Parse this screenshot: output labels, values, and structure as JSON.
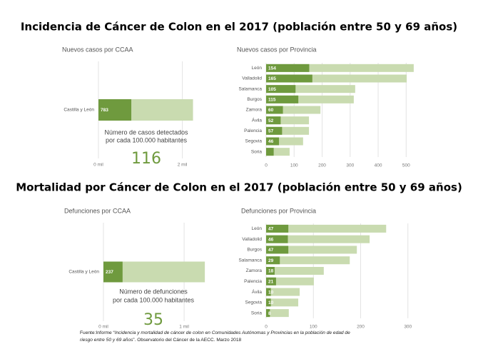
{
  "title_incidence": "Incidencia de Cáncer de Colon en el 2017 (población entre 50 y 69 años)",
  "title_mortality": "Mortalidad por Cáncer de Colon en el 2017 (población entre 50 y 69 años)",
  "footnote": [
    [
      {
        "text": "Fuente:Informe “",
        "italic": false
      },
      {
        "text": "Incidencia y mortalidad de cáncer de colon en Comunidades Autónomas y Provincias en la población de edad de",
        "italic": true
      }
    ],
    [
      {
        "text": "riesgo entre 50 y 69 años",
        "italic": true
      },
      {
        "text": "”. Observatorio del Cáncer de la AECC. Marzo 2018",
        "italic": false
      }
    ]
  ],
  "chart_data": [
    {
      "type": "bar",
      "orientation": "horizontal",
      "title": "Nuevos casos por CCAA",
      "categories": [
        "Castilla y León"
      ],
      "series": [
        {
          "color": "#6f9a3e",
          "values": [
            783
          ]
        },
        {
          "color": "#c9dbb0",
          "values": [
            2254
          ]
        }
      ],
      "xlim": [
        0,
        2500
      ],
      "xticks": [
        {
          "value": 0,
          "label": "0 mil"
        },
        {
          "value": 2000,
          "label": "2 mil"
        }
      ],
      "grid": true,
      "kpi_label": [
        "Número de casos detectados",
        "por cada 100.000 habitantes"
      ],
      "kpi_value": 116
    },
    {
      "type": "bar",
      "orientation": "horizontal",
      "title": "Nuevos casos por Provincia",
      "categories": [
        "León",
        "Valladolid",
        "Salamanca",
        "Burgos",
        "Zamora",
        "Ávila",
        "Palencia",
        "Segovia",
        "Soria"
      ],
      "series": [
        {
          "color": "#6f9a3e",
          "values": [
            154,
            165,
            105,
            115,
            60,
            52,
            57,
            46,
            27
          ]
        },
        {
          "color": "#c9dbb0",
          "values": [
            527,
            502,
            318,
            313,
            194,
            153,
            153,
            132,
            84
          ]
        }
      ],
      "value_labels": [
        "154",
        "165",
        "105",
        "115",
        "60",
        "52",
        "57",
        "46",
        null
      ],
      "xlim": [
        0,
        540
      ],
      "xticks": [
        0,
        100,
        200,
        300,
        400,
        500
      ],
      "grid": true
    },
    {
      "type": "bar",
      "orientation": "horizontal",
      "title": "Defunciones por CCAA",
      "categories": [
        "Castilla y León"
      ],
      "series": [
        {
          "color": "#6f9a3e",
          "values": [
            237
          ]
        },
        {
          "color": "#c9dbb0",
          "values": [
            1257
          ]
        }
      ],
      "xlim": [
        0,
        1300
      ],
      "xticks": [
        {
          "value": 0,
          "label": "0 mil"
        },
        {
          "value": 1000,
          "label": "1 mil"
        }
      ],
      "grid": true,
      "kpi_label": [
        "Número de defunciones",
        "por cada 100.000 habitantes"
      ],
      "kpi_value": 35
    },
    {
      "type": "bar",
      "orientation": "horizontal",
      "title": "Defunciones por Provincia",
      "categories": [
        "León",
        "Valladolid",
        "Burgos",
        "Salamanca",
        "Zamora",
        "Palencia",
        "Ávila",
        "Segovia",
        "Soria"
      ],
      "series": [
        {
          "color": "#6f9a3e",
          "values": [
            47,
            46,
            47,
            29,
            18,
            21,
            10,
            10,
            8
          ]
        },
        {
          "color": "#c9dbb0",
          "values": [
            254,
            219,
            192,
            177,
            122,
            101,
            71,
            68,
            48
          ]
        }
      ],
      "xlim": [
        0,
        320
      ],
      "xticks": [
        0,
        100,
        200,
        300
      ],
      "grid": true
    }
  ]
}
